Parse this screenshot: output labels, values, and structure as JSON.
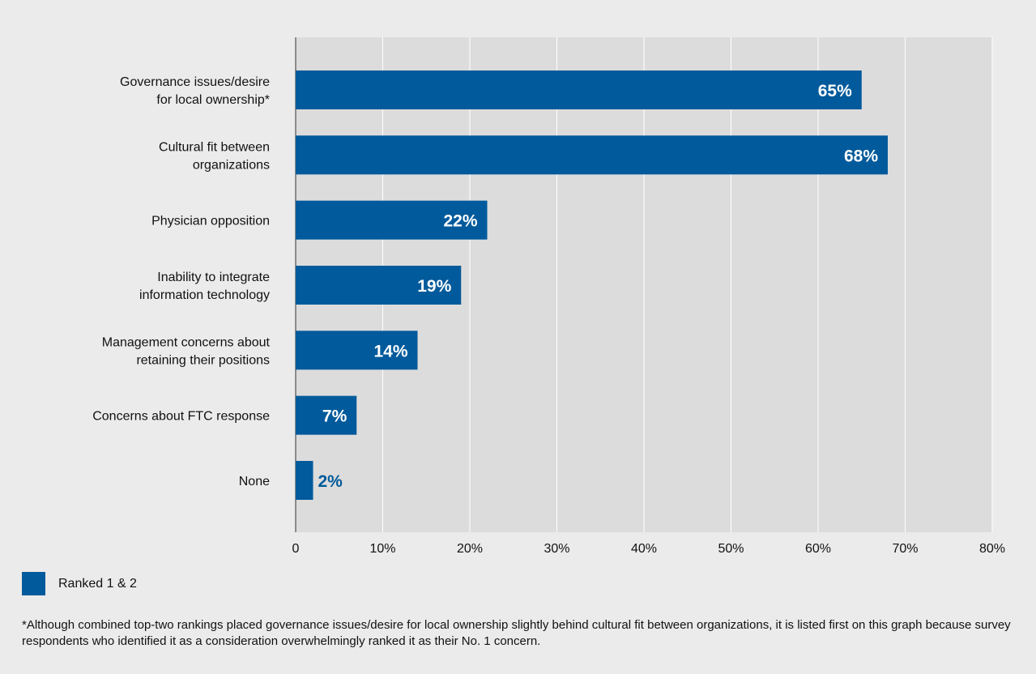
{
  "chart_data": {
    "type": "bar",
    "orientation": "horizontal",
    "categories": [
      [
        "Governance issues/desire",
        "for local ownership*"
      ],
      [
        "Cultural fit between",
        "organizations"
      ],
      [
        "Physician opposition"
      ],
      [
        "Inability to integrate",
        "information technology"
      ],
      [
        "Management concerns about",
        "retaining their positions"
      ],
      [
        "Concerns about FTC response"
      ],
      [
        "None"
      ]
    ],
    "series": [
      {
        "name": "Ranked 1 & 2",
        "values": [
          65,
          68,
          22,
          19,
          14,
          7,
          2
        ]
      }
    ],
    "value_labels": [
      "65%",
      "68%",
      "22%",
      "19%",
      "14%",
      "7%",
      "2%"
    ],
    "xlim": [
      0,
      80
    ],
    "xticks": [
      0,
      10,
      20,
      30,
      40,
      50,
      60,
      70,
      80
    ],
    "xtick_labels": [
      "0",
      "10%",
      "20%",
      "30%",
      "40%",
      "50%",
      "60%",
      "70%",
      "80%"
    ],
    "grid": true,
    "legend_position": "bottom-left"
  },
  "colors": {
    "bar": "#005a9b",
    "background": "#ebebeb",
    "plot_background": "#dcdcdc",
    "gridline": "#ffffff",
    "axis": "#333333",
    "text": "#111111"
  },
  "legend": {
    "label": "Ranked 1 & 2"
  },
  "footnote": "*Although combined top-two rankings placed governance issues/desire for local ownership slightly behind cultural fit between organizations, it is listed first on this graph because survey respondents who identified it as a consideration overwhelmingly ranked it as their No. 1 concern."
}
